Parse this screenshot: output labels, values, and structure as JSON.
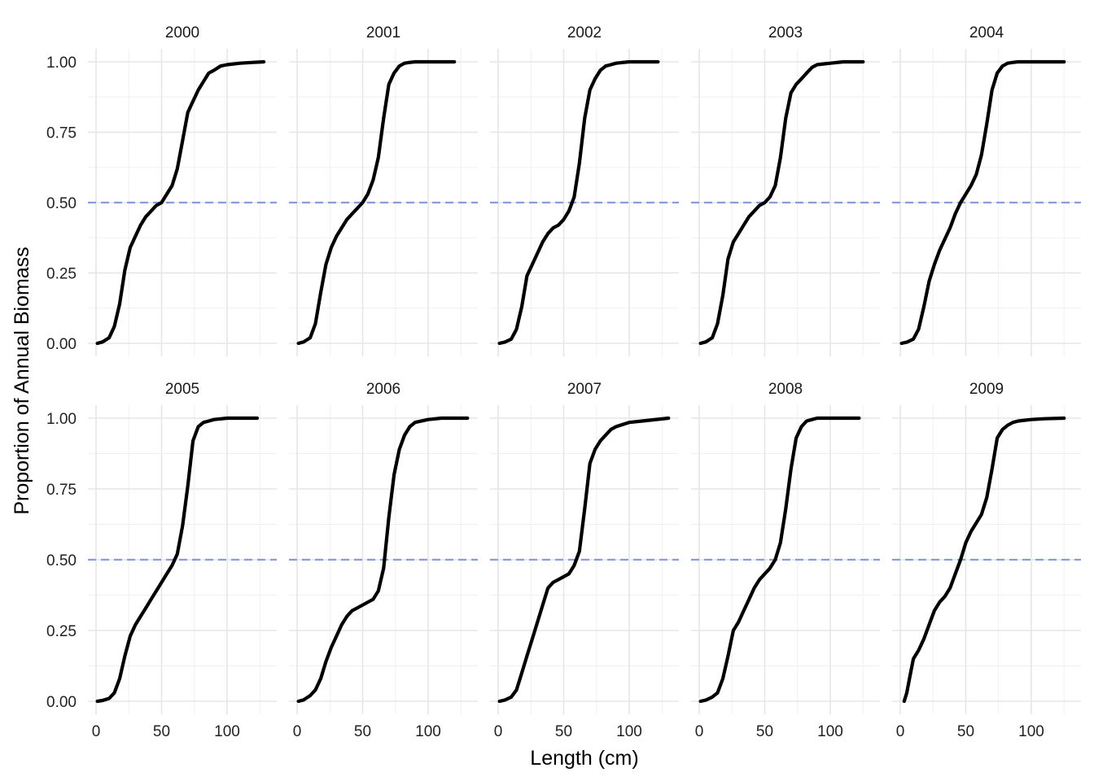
{
  "chart_data": {
    "type": "line",
    "layout": "facet-grid",
    "facet_rows": 2,
    "facet_cols": 5,
    "xlabel": "Length (cm)",
    "ylabel": "Proportion of Annual Biomass",
    "xlim": [
      0,
      135
    ],
    "ylim": [
      0,
      1.03
    ],
    "x_ticks": [
      0,
      50,
      100
    ],
    "x_tick_labels": [
      "0",
      "50",
      "100"
    ],
    "y_ticks": [
      0,
      0.25,
      0.5,
      0.75,
      1
    ],
    "y_tick_labels": [
      "0.00",
      "0.25",
      "0.50",
      "0.75",
      "1.00"
    ],
    "grid": true,
    "line_color": "#000000",
    "reference_line": {
      "y": 0.5,
      "style": "dashed",
      "color": "#8a9bd8"
    },
    "facets": [
      {
        "label": "2000",
        "x": [
          1,
          5,
          10,
          14,
          18,
          22,
          26,
          30,
          34,
          38,
          42,
          46,
          50,
          54,
          58,
          62,
          66,
          70,
          74,
          78,
          82,
          86,
          90,
          95,
          100,
          110,
          120,
          128
        ],
        "y": [
          0,
          0.005,
          0.02,
          0.06,
          0.14,
          0.26,
          0.34,
          0.38,
          0.42,
          0.45,
          0.47,
          0.49,
          0.5,
          0.53,
          0.56,
          0.62,
          0.72,
          0.82,
          0.86,
          0.9,
          0.93,
          0.96,
          0.97,
          0.985,
          0.99,
          0.995,
          0.998,
          1
        ]
      },
      {
        "label": "2001",
        "x": [
          1,
          5,
          10,
          14,
          18,
          22,
          26,
          30,
          34,
          38,
          42,
          46,
          50,
          54,
          58,
          62,
          66,
          70,
          74,
          78,
          82,
          86,
          90,
          100,
          110,
          120
        ],
        "y": [
          0,
          0.005,
          0.02,
          0.07,
          0.18,
          0.28,
          0.34,
          0.38,
          0.41,
          0.44,
          0.46,
          0.48,
          0.5,
          0.53,
          0.58,
          0.66,
          0.8,
          0.92,
          0.96,
          0.985,
          0.995,
          0.998,
          1,
          1,
          1,
          1
        ]
      },
      {
        "label": "2002",
        "x": [
          1,
          5,
          10,
          14,
          18,
          22,
          26,
          30,
          34,
          38,
          42,
          46,
          50,
          54,
          58,
          62,
          66,
          70,
          74,
          78,
          82,
          86,
          90,
          100,
          110,
          122
        ],
        "y": [
          0,
          0.004,
          0.015,
          0.05,
          0.13,
          0.24,
          0.28,
          0.32,
          0.36,
          0.39,
          0.41,
          0.42,
          0.44,
          0.47,
          0.52,
          0.64,
          0.8,
          0.9,
          0.94,
          0.97,
          0.985,
          0.99,
          0.995,
          1,
          1,
          1
        ]
      },
      {
        "label": "2003",
        "x": [
          1,
          5,
          10,
          14,
          18,
          22,
          26,
          30,
          34,
          38,
          42,
          46,
          50,
          54,
          58,
          62,
          66,
          70,
          74,
          78,
          82,
          86,
          90,
          100,
          110,
          125
        ],
        "y": [
          0,
          0.005,
          0.02,
          0.07,
          0.17,
          0.3,
          0.36,
          0.39,
          0.42,
          0.45,
          0.47,
          0.49,
          0.5,
          0.52,
          0.56,
          0.66,
          0.8,
          0.89,
          0.92,
          0.94,
          0.96,
          0.98,
          0.99,
          0.995,
          1,
          1
        ]
      },
      {
        "label": "2004",
        "x": [
          1,
          5,
          10,
          14,
          18,
          22,
          26,
          30,
          34,
          38,
          42,
          46,
          50,
          54,
          58,
          62,
          66,
          70,
          74,
          78,
          82,
          86,
          90,
          100,
          110,
          125
        ],
        "y": [
          0,
          0.004,
          0.015,
          0.05,
          0.13,
          0.22,
          0.28,
          0.33,
          0.37,
          0.41,
          0.46,
          0.5,
          0.53,
          0.56,
          0.6,
          0.67,
          0.78,
          0.9,
          0.96,
          0.985,
          0.995,
          0.998,
          1,
          1,
          1,
          1
        ]
      },
      {
        "label": "2005",
        "x": [
          1,
          5,
          10,
          14,
          18,
          22,
          26,
          30,
          34,
          38,
          42,
          46,
          50,
          54,
          58,
          62,
          66,
          70,
          74,
          78,
          82,
          86,
          90,
          100,
          110,
          123
        ],
        "y": [
          0,
          0.003,
          0.01,
          0.03,
          0.08,
          0.16,
          0.23,
          0.27,
          0.3,
          0.33,
          0.36,
          0.39,
          0.42,
          0.45,
          0.48,
          0.52,
          0.62,
          0.76,
          0.92,
          0.97,
          0.985,
          0.99,
          0.995,
          1,
          1,
          1
        ]
      },
      {
        "label": "2006",
        "x": [
          1,
          5,
          10,
          14,
          18,
          22,
          26,
          30,
          34,
          38,
          42,
          46,
          50,
          54,
          58,
          62,
          66,
          70,
          74,
          78,
          82,
          86,
          90,
          100,
          110,
          130
        ],
        "y": [
          0,
          0.005,
          0.02,
          0.04,
          0.08,
          0.14,
          0.19,
          0.23,
          0.27,
          0.3,
          0.32,
          0.33,
          0.34,
          0.35,
          0.36,
          0.39,
          0.47,
          0.65,
          0.8,
          0.89,
          0.94,
          0.97,
          0.985,
          0.995,
          1,
          1
        ]
      },
      {
        "label": "2007",
        "x": [
          1,
          5,
          10,
          14,
          18,
          22,
          26,
          30,
          34,
          38,
          42,
          46,
          50,
          54,
          58,
          62,
          66,
          70,
          74,
          78,
          82,
          86,
          90,
          100,
          110,
          130
        ],
        "y": [
          0,
          0.004,
          0.015,
          0.04,
          0.1,
          0.16,
          0.22,
          0.28,
          0.34,
          0.4,
          0.42,
          0.43,
          0.44,
          0.45,
          0.48,
          0.53,
          0.68,
          0.84,
          0.89,
          0.92,
          0.94,
          0.96,
          0.97,
          0.985,
          0.99,
          1
        ]
      },
      {
        "label": "2008",
        "x": [
          1,
          5,
          10,
          14,
          18,
          22,
          26,
          30,
          34,
          38,
          42,
          46,
          50,
          54,
          58,
          62,
          66,
          70,
          74,
          78,
          82,
          86,
          90,
          100,
          110,
          122
        ],
        "y": [
          0,
          0.004,
          0.015,
          0.03,
          0.08,
          0.16,
          0.25,
          0.28,
          0.32,
          0.36,
          0.4,
          0.43,
          0.45,
          0.47,
          0.5,
          0.56,
          0.68,
          0.82,
          0.93,
          0.97,
          0.99,
          0.995,
          1,
          1,
          1,
          1
        ]
      },
      {
        "label": "2009",
        "x": [
          3,
          5,
          7,
          10,
          14,
          18,
          22,
          26,
          30,
          34,
          38,
          42,
          46,
          50,
          54,
          58,
          62,
          66,
          70,
          74,
          78,
          82,
          86,
          90,
          100,
          110,
          125
        ],
        "y": [
          0,
          0.03,
          0.08,
          0.15,
          0.18,
          0.22,
          0.27,
          0.32,
          0.35,
          0.37,
          0.4,
          0.45,
          0.5,
          0.56,
          0.6,
          0.63,
          0.66,
          0.72,
          0.82,
          0.93,
          0.96,
          0.975,
          0.985,
          0.99,
          0.995,
          0.998,
          1
        ]
      }
    ]
  }
}
